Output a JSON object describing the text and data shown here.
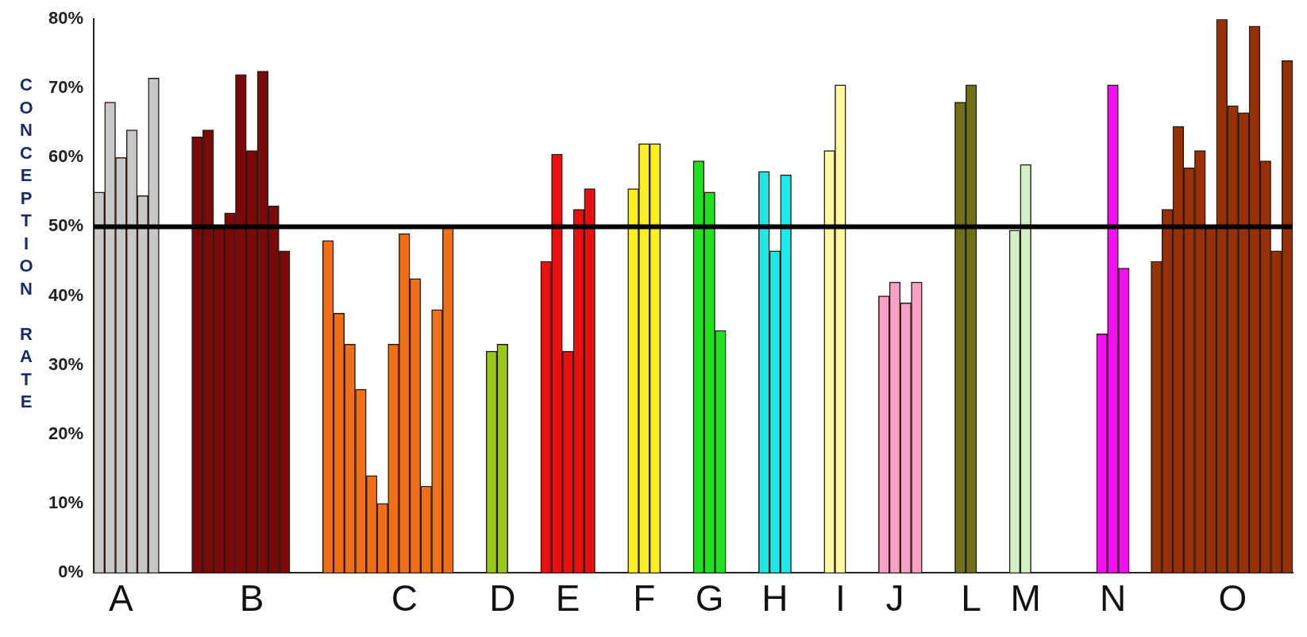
{
  "chart_data": {
    "type": "bar",
    "ylabel": "CONCEPTION RATE",
    "categories": [
      null,
      null,
      "A",
      null,
      null,
      null,
      null,
      null,
      null,
      null,
      null,
      null,
      null,
      null,
      "B",
      null,
      null,
      null,
      null,
      null,
      null,
      null,
      null,
      null,
      null,
      null,
      null,
      null,
      "C",
      null,
      null,
      null,
      null,
      null,
      null,
      null,
      null,
      "D",
      null,
      null,
      null,
      null,
      null,
      "E",
      null,
      null,
      null,
      null,
      null,
      null,
      "F",
      null,
      null,
      null,
      null,
      null,
      "G",
      null,
      null,
      null,
      null,
      null,
      "H",
      null,
      null,
      null,
      null,
      null,
      "I",
      null,
      null,
      null,
      null,
      "J",
      null,
      null,
      null,
      null,
      null,
      null,
      "L",
      null,
      null,
      null,
      null,
      "M",
      null,
      null,
      null,
      null,
      null,
      null,
      null,
      "N",
      null,
      null,
      null,
      null,
      null,
      null,
      null,
      null,
      null,
      null,
      "O",
      null,
      null,
      null,
      null,
      null
    ],
    "values": [
      55,
      68,
      60,
      64,
      54.5,
      71.5,
      null,
      null,
      null,
      63,
      64,
      50,
      52,
      72,
      61,
      72.5,
      53,
      46.5,
      null,
      null,
      null,
      48,
      37.5,
      33,
      26.5,
      14,
      10,
      33,
      49,
      42.5,
      12.5,
      38,
      50,
      null,
      null,
      null,
      32,
      33,
      null,
      null,
      null,
      45,
      60.5,
      32,
      52.5,
      55.5,
      null,
      null,
      null,
      55.5,
      62,
      62,
      null,
      null,
      null,
      59.5,
      55,
      35,
      null,
      null,
      null,
      58,
      46.5,
      57.5,
      null,
      null,
      null,
      61,
      70.5,
      null,
      null,
      null,
      40,
      42,
      39,
      42,
      null,
      null,
      null,
      68,
      70.5,
      null,
      null,
      null,
      49.5,
      59,
      null,
      null,
      null,
      null,
      null,
      null,
      34.5,
      70.5,
      44,
      null,
      null,
      45,
      52.5,
      64.5,
      58.5,
      61,
      50,
      80,
      67.5,
      66.5,
      79,
      59.5,
      46.5,
      74
    ],
    "colors": [
      "#c8c8c8",
      "#c8c8c8",
      "#c8c8c8",
      "#c8c8c8",
      "#c8c8c8",
      "#c8c8c8",
      null,
      null,
      null,
      "#7a0a0a",
      "#7a0a0a",
      "#7a0a0a",
      "#7a0a0a",
      "#7a0a0a",
      "#7a0a0a",
      "#7a0a0a",
      "#7a0a0a",
      "#7a0a0a",
      null,
      null,
      null,
      "#f07018",
      "#f07018",
      "#f07018",
      "#f07018",
      "#f07018",
      "#f07018",
      "#f07018",
      "#f07018",
      "#f07018",
      "#f07018",
      "#f07018",
      "#f07018",
      null,
      null,
      null,
      "#98c818",
      "#98c818",
      null,
      null,
      null,
      "#e81010",
      "#e81010",
      "#e81010",
      "#e81010",
      "#e81010",
      null,
      null,
      null,
      "#f8f020",
      "#f8f020",
      "#f8f020",
      null,
      null,
      null,
      "#20e020",
      "#20e020",
      "#20e020",
      null,
      null,
      null,
      "#20e8e8",
      "#20e8e8",
      "#20e8e8",
      null,
      null,
      null,
      "#fff8a0",
      "#fff8a0",
      null,
      null,
      null,
      "#f8a0c8",
      "#f8a0c8",
      "#f8a0c8",
      "#f8a0c8",
      null,
      null,
      null,
      "#707018",
      "#707018",
      null,
      null,
      null,
      "#d0f0c8",
      "#d0f0c8",
      null,
      null,
      null,
      null,
      null,
      null,
      "#f010f0",
      "#f010f0",
      "#f010f0",
      null,
      null,
      "#983008",
      "#983008",
      "#983008",
      "#983008",
      "#983008",
      "#983008",
      "#983008",
      "#983008",
      "#983008",
      "#983008",
      "#983008",
      "#983008",
      "#983008"
    ],
    "ylim": [
      0,
      80
    ],
    "yticks": [
      {
        "value": 0,
        "label": "0%"
      },
      {
        "value": 10,
        "label": "10%"
      },
      {
        "value": 20,
        "label": "20%"
      },
      {
        "value": 30,
        "label": "30%"
      },
      {
        "value": 40,
        "label": "40%"
      },
      {
        "value": 50,
        "label": "50%"
      },
      {
        "value": 60,
        "label": "60%"
      },
      {
        "value": 70,
        "label": "70%"
      },
      {
        "value": 80,
        "label": "80%"
      }
    ],
    "ref_lines": [
      {
        "axis": "y",
        "value": 50,
        "color": "#000000"
      }
    ],
    "grid": false,
    "legend": false
  }
}
